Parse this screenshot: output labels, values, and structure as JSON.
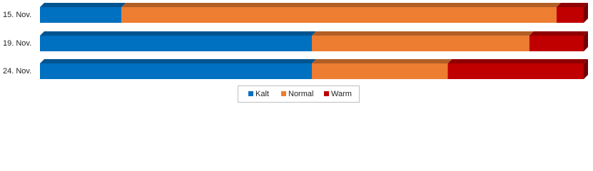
{
  "chart_data": {
    "type": "stacked-bar-horizontal-3d",
    "categories": [
      "15. Nov.",
      "19. Nov.",
      "24. Nov."
    ],
    "series": [
      {
        "name": "Kalt",
        "color": "#0070c0",
        "values": [
          15,
          50,
          50
        ]
      },
      {
        "name": "Normal",
        "color": "#ed7d31",
        "values": [
          80,
          40,
          25
        ]
      },
      {
        "name": "Warm",
        "color": "#c00000",
        "values": [
          5,
          10,
          25
        ]
      }
    ],
    "xlim": [
      0,
      100
    ],
    "legend": "bottom"
  }
}
